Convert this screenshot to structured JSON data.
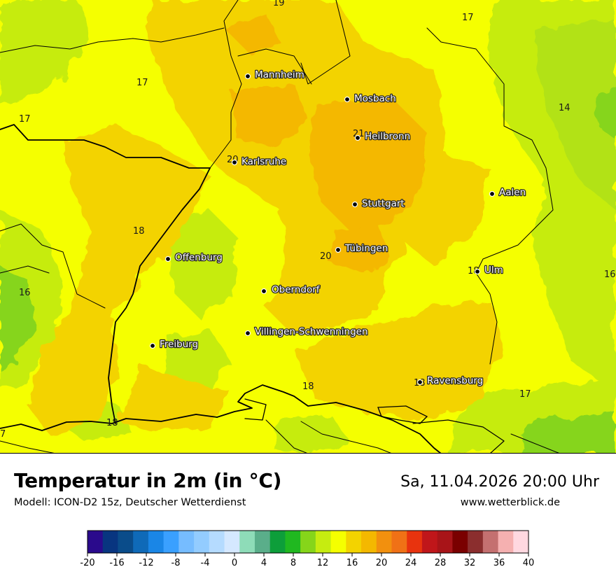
{
  "title": "Temperatur in 2m (in °C)",
  "subtitle": "Modell: ICON-D2 15z, Deutscher Wetterdienst",
  "datetime": "Sa, 11.04.2026 20:00 Uhr",
  "website": "www.wetterblick.de",
  "cities": [
    {
      "id": "mannheim",
      "name": "Mannheim"
    },
    {
      "id": "mosbach",
      "name": "Mosbach"
    },
    {
      "id": "heilbronn",
      "name": "Heilbronn"
    },
    {
      "id": "karlsruhe",
      "name": "Karlsruhe"
    },
    {
      "id": "aalen",
      "name": "Aalen"
    },
    {
      "id": "stuttgart",
      "name": "Stuttgart"
    },
    {
      "id": "tuebingen",
      "name": "Tübingen"
    },
    {
      "id": "offenburg",
      "name": "Offenburg"
    },
    {
      "id": "ulm",
      "name": "Ulm"
    },
    {
      "id": "oberndorf",
      "name": "Oberndorf"
    },
    {
      "id": "villingen",
      "name": "Villingen-Schwenningen"
    },
    {
      "id": "freiburg",
      "name": "Freiburg"
    },
    {
      "id": "ravensburg",
      "name": "Ravensburg"
    }
  ],
  "temperature_labels": [
    "19",
    "17",
    "17",
    "17",
    "14",
    "21",
    "20",
    "18",
    "20",
    "18",
    "16",
    "16",
    "18",
    "18",
    "17",
    "18",
    "7"
  ],
  "legend": {
    "ticks": [
      "-20",
      "-16",
      "-12",
      "-8",
      "-4",
      "0",
      "4",
      "8",
      "12",
      "16",
      "20",
      "24",
      "28",
      "32",
      "36",
      "40"
    ],
    "colors": [
      "#2a0a8c",
      "#083580",
      "#0a4c8a",
      "#0f6ab8",
      "#1a86e6",
      "#3aa0ff",
      "#76bcff",
      "#93ccff",
      "#b5dbff",
      "#d5e8ff",
      "#8edcb8",
      "#5aae8a",
      "#0d9e3a",
      "#20b820",
      "#86d51a",
      "#c6ec10",
      "#f5ff00",
      "#f3d300",
      "#f4b800",
      "#f2900e",
      "#f07116",
      "#e8330e",
      "#c0161a",
      "#a81418",
      "#7a0000",
      "#8b2e2e",
      "#c47070",
      "#f5b0b0",
      "#ffd8e0"
    ]
  },
  "colors": {
    "yellow": "#f5ff00",
    "orange_yellow": "#f3d300",
    "orange": "#f4b800",
    "lime": "#c6ec10",
    "green": "#86d51a"
  }
}
